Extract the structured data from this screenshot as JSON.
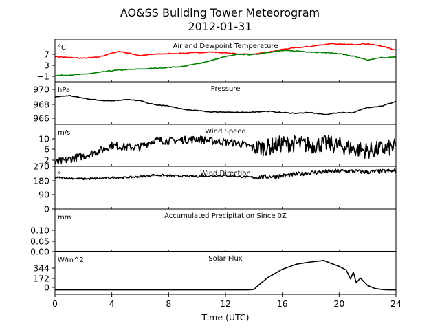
{
  "title": "AO&SS Building Tower Meteorogram",
  "subtitle": "2012-01-31",
  "xlabel": "Time (UTC)",
  "xticks": [
    "0",
    "4",
    "8",
    "12",
    "16",
    "20",
    "24"
  ],
  "chart_data": [
    {
      "type": "line",
      "title": "Air and Dewpoint Temperature",
      "unit": "°C",
      "ylim": [
        -2.5,
        10.5
      ],
      "yticks": [
        "−1",
        "3",
        "7"
      ],
      "series": [
        {
          "color": "#ff0000",
          "x": [
            0,
            1,
            2,
            3,
            4,
            4.5,
            5,
            6,
            7,
            8,
            9,
            10,
            11,
            12,
            13,
            14,
            15,
            16,
            17,
            18,
            19,
            19.5,
            20,
            21,
            22,
            23,
            24
          ],
          "y": [
            5.2,
            4.9,
            4.7,
            5.0,
            6.2,
            6.8,
            6.4,
            5.5,
            5.9,
            6.1,
            6.2,
            6.4,
            6.6,
            6.3,
            6.0,
            5.9,
            6.5,
            7.4,
            7.9,
            8.3,
            8.9,
            9.2,
            8.9,
            8.9,
            9.1,
            8.4,
            7.2
          ]
        },
        {
          "color": "#008000",
          "x": [
            0,
            1,
            2,
            3,
            4,
            5,
            6,
            7,
            8,
            9,
            10,
            11,
            12,
            13,
            14,
            15,
            16,
            17,
            18,
            19,
            20,
            21,
            22,
            23,
            24
          ],
          "y": [
            -0.6,
            -0.4,
            -0.2,
            0.3,
            0.9,
            1.2,
            1.4,
            1.6,
            1.9,
            2.2,
            3.0,
            4.0,
            5.2,
            5.9,
            5.8,
            6.5,
            7.0,
            6.9,
            6.6,
            6.4,
            6.1,
            5.3,
            4.1,
            4.9,
            5.0
          ]
        }
      ]
    },
    {
      "type": "line",
      "title": "Pressure",
      "unit": "hPa",
      "ylim": [
        965.0,
        971.5
      ],
      "yticks": [
        "966",
        "968",
        "970"
      ],
      "series": [
        {
          "color": "#000000",
          "x": [
            0,
            1,
            2,
            3,
            4,
            5,
            6,
            7,
            8,
            9,
            10,
            11,
            12,
            13,
            14,
            15,
            16,
            17,
            18,
            19,
            20,
            21,
            22,
            23,
            24
          ],
          "y": [
            969.2,
            969.4,
            969.0,
            968.7,
            968.6,
            968.8,
            968.6,
            968.0,
            967.8,
            967.3,
            967.1,
            966.9,
            966.9,
            966.8,
            966.9,
            967.0,
            966.8,
            966.7,
            966.8,
            966.5,
            966.8,
            966.8,
            967.6,
            967.8,
            968.5
          ]
        }
      ]
    },
    {
      "type": "line",
      "title": "Wind Speed",
      "unit": "m/s",
      "ylim": [
        2,
        14
      ],
      "yticks": [
        "2",
        "6",
        "10"
      ],
      "noise": 1.1,
      "series": [
        {
          "color": "#000000",
          "x": [
            0,
            1,
            2,
            3,
            4,
            5,
            6,
            7,
            8,
            9,
            10,
            11,
            12,
            13,
            14,
            15,
            16,
            17,
            18,
            19,
            20,
            21,
            22,
            23,
            24
          ],
          "y": [
            3.0,
            4.0,
            5.0,
            6.2,
            8.0,
            7.5,
            7.5,
            9.5,
            9.3,
            9.5,
            9.8,
            9.3,
            9.0,
            8.5,
            7.3,
            7.5,
            8.5,
            8.5,
            8.0,
            8.5,
            8.0,
            7.0,
            6.5,
            7.0,
            7.5
          ]
        }
      ]
    },
    {
      "type": "line",
      "title": "Wind Direction",
      "unit": "°",
      "ylim": [
        0,
        270
      ],
      "yticks": [
        "0",
        "90",
        "180",
        "270"
      ],
      "noise": 6,
      "series": [
        {
          "color": "#000000",
          "x": [
            0,
            1,
            2,
            3,
            4,
            5,
            6,
            7,
            8,
            9,
            10,
            11,
            12,
            13,
            14,
            15,
            16,
            17,
            18,
            19,
            20,
            21,
            22,
            23,
            24
          ],
          "y": [
            200,
            195,
            190,
            193,
            198,
            200,
            205,
            215,
            212,
            208,
            207,
            210,
            212,
            205,
            200,
            205,
            210,
            220,
            230,
            235,
            240,
            240,
            235,
            238,
            242
          ]
        }
      ]
    },
    {
      "type": "line",
      "title": "Accumulated Precipitation Since 0Z",
      "unit": "mm",
      "ylim": [
        0,
        0.19
      ],
      "yticks": [
        "0.00",
        "0.05",
        "0.10"
      ],
      "series": [
        {
          "color": "#000000",
          "x": [
            0,
            24
          ],
          "y": [
            0,
            0
          ]
        }
      ]
    },
    {
      "type": "line",
      "title": "Solar Flux",
      "unit": "W/m^2",
      "ylim": [
        -60,
        520
      ],
      "yticks": [
        "0",
        "172",
        "344"
      ],
      "series": [
        {
          "color": "#000000",
          "x": [
            0,
            13.5,
            14.0,
            14.3,
            15,
            16,
            17,
            18,
            18.5,
            18.9,
            19.3,
            20,
            20.5,
            20.8,
            21.0,
            21.2,
            21.5,
            22,
            22.5,
            23,
            23.5,
            24
          ],
          "y": [
            0,
            0,
            5,
            60,
            170,
            280,
            350,
            380,
            390,
            400,
            370,
            320,
            270,
            150,
            240,
            100,
            160,
            60,
            20,
            5,
            0,
            0
          ]
        }
      ]
    }
  ]
}
